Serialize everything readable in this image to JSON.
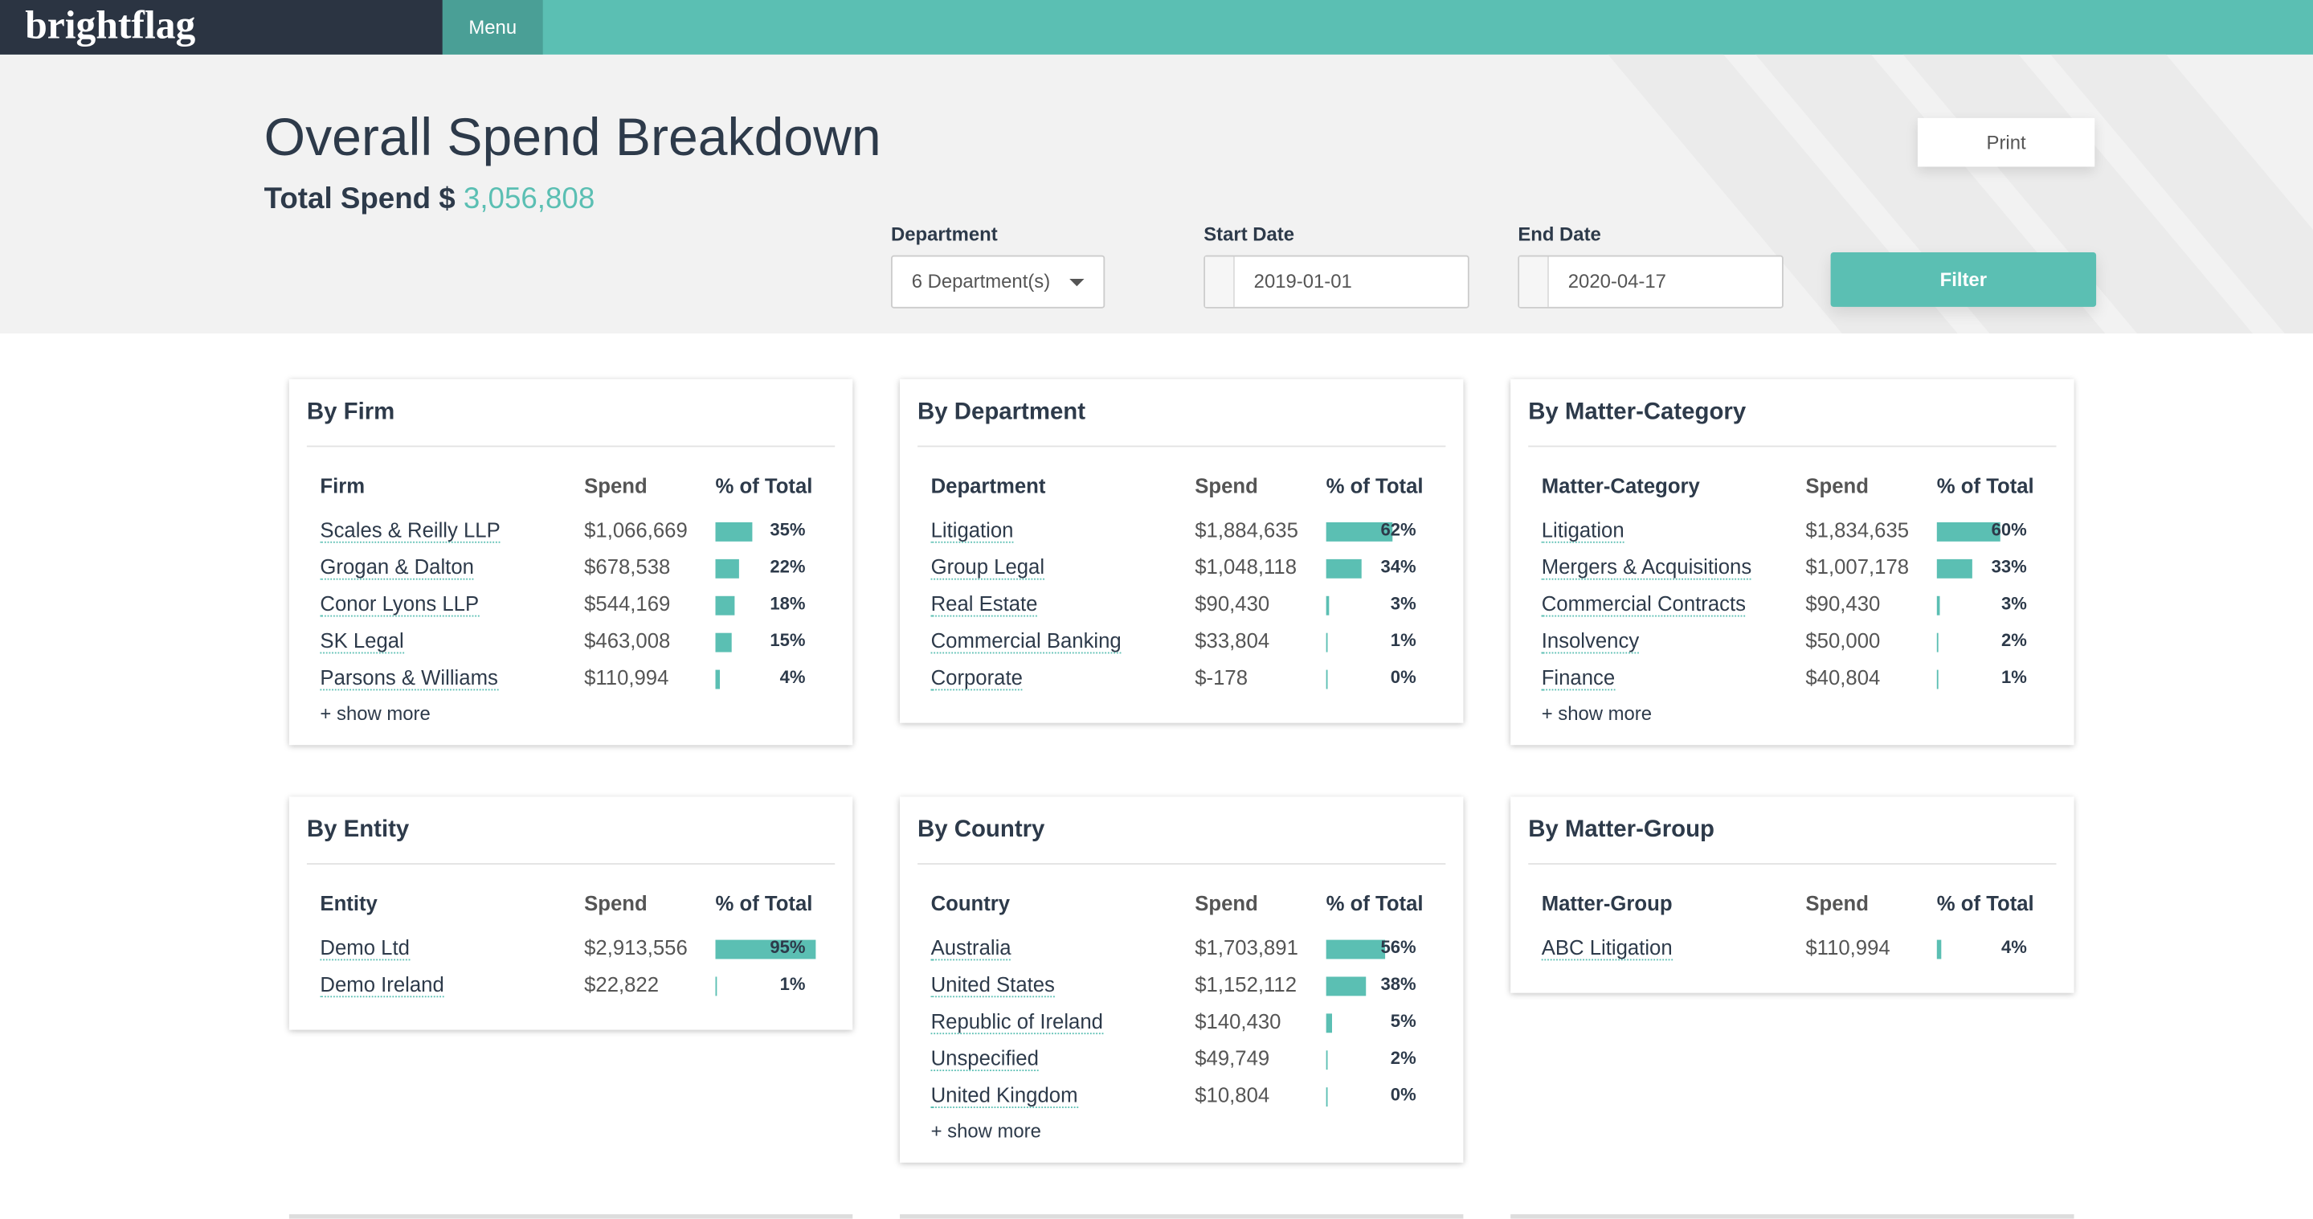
{
  "header": {
    "logo": "brightflag",
    "menu": "Menu"
  },
  "page": {
    "title": "Overall Spend Breakdown",
    "total_label": "Total Spend $",
    "total_value": "3,056,808",
    "print": "Print"
  },
  "filters": {
    "department_label": "Department",
    "department_value": "6 Department(s)",
    "start_label": "Start Date",
    "start_value": "2019-01-01",
    "end_label": "End Date",
    "end_value": "2020-04-17",
    "filter_button": "Filter"
  },
  "panels": [
    {
      "title": "By Firm",
      "columns": [
        "Firm",
        "Spend",
        "% of Total"
      ],
      "rows": [
        {
          "name": "Scales & Reilly LLP",
          "spend": "$1,066,669",
          "pct": 35,
          "pct_label": "35%"
        },
        {
          "name": "Grogan & Dalton",
          "spend": "$678,538",
          "pct": 22,
          "pct_label": "22%"
        },
        {
          "name": "Conor Lyons LLP",
          "spend": "$544,169",
          "pct": 18,
          "pct_label": "18%"
        },
        {
          "name": "SK Legal",
          "spend": "$463,008",
          "pct": 15,
          "pct_label": "15%"
        },
        {
          "name": "Parsons & Williams",
          "spend": "$110,994",
          "pct": 4,
          "pct_label": "4%"
        }
      ],
      "show_more": "+ show more"
    },
    {
      "title": "By Department",
      "columns": [
        "Department",
        "Spend",
        "% of Total"
      ],
      "rows": [
        {
          "name": "Litigation",
          "spend": "$1,884,635",
          "pct": 62,
          "pct_label": "62%"
        },
        {
          "name": "Group Legal",
          "spend": "$1,048,118",
          "pct": 34,
          "pct_label": "34%"
        },
        {
          "name": "Real Estate",
          "spend": "$90,430",
          "pct": 3,
          "pct_label": "3%"
        },
        {
          "name": "Commercial Banking",
          "spend": "$33,804",
          "pct": 1,
          "pct_label": "1%"
        },
        {
          "name": "Corporate",
          "spend": "$-178",
          "pct": 0,
          "pct_label": "0%"
        }
      ]
    },
    {
      "title": "By Matter-Category",
      "columns": [
        "Matter-Category",
        "Spend",
        "% of Total"
      ],
      "rows": [
        {
          "name": "Litigation",
          "spend": "$1,834,635",
          "pct": 60,
          "pct_label": "60%"
        },
        {
          "name": "Mergers & Acquisitions",
          "spend": "$1,007,178",
          "pct": 33,
          "pct_label": "33%"
        },
        {
          "name": "Commercial Contracts",
          "spend": "$90,430",
          "pct": 3,
          "pct_label": "3%"
        },
        {
          "name": "Insolvency",
          "spend": "$50,000",
          "pct": 2,
          "pct_label": "2%"
        },
        {
          "name": "Finance",
          "spend": "$40,804",
          "pct": 1,
          "pct_label": "1%"
        }
      ],
      "show_more": "+ show more"
    },
    {
      "title": "By Entity",
      "columns": [
        "Entity",
        "Spend",
        "% of Total"
      ],
      "rows": [
        {
          "name": "Demo Ltd",
          "spend": "$2,913,556",
          "pct": 95,
          "pct_label": "95%"
        },
        {
          "name": "Demo Ireland",
          "spend": "$22,822",
          "pct": 1,
          "pct_label": "1%"
        }
      ]
    },
    {
      "title": "By Country",
      "columns": [
        "Country",
        "Spend",
        "% of Total"
      ],
      "rows": [
        {
          "name": "Australia",
          "spend": "$1,703,891",
          "pct": 56,
          "pct_label": "56%"
        },
        {
          "name": "United States",
          "spend": "$1,152,112",
          "pct": 38,
          "pct_label": "38%"
        },
        {
          "name": "Republic of Ireland",
          "spend": "$140,430",
          "pct": 5,
          "pct_label": "5%"
        },
        {
          "name": "Unspecified",
          "spend": "$49,749",
          "pct": 2,
          "pct_label": "2%"
        },
        {
          "name": "United Kingdom",
          "spend": "$10,804",
          "pct": 0,
          "pct_label": "0%"
        }
      ],
      "show_more": "+ show more"
    },
    {
      "title": "By Matter-Group",
      "columns": [
        "Matter-Group",
        "Spend",
        "% of Total"
      ],
      "rows": [
        {
          "name": "ABC Litigation",
          "spend": "$110,994",
          "pct": 4,
          "pct_label": "4%"
        }
      ]
    }
  ]
}
